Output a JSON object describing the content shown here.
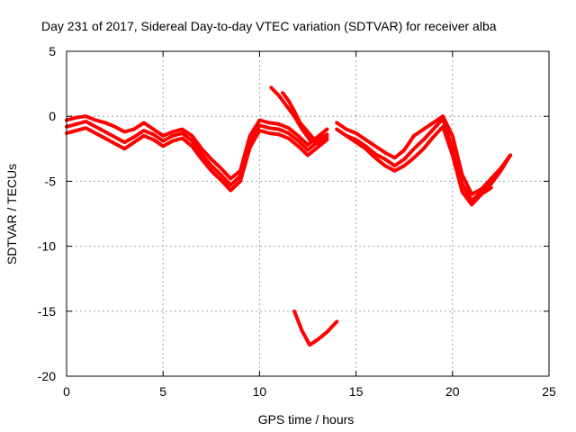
{
  "chart_data": {
    "type": "line",
    "title": "Day 231 of 2017, Sidereal Day-to-day VTEC variation (SDTVAR) for receiver alba",
    "xlabel": "GPS time / hours",
    "ylabel": "SDTVAR / TECUs",
    "xlim": [
      0,
      25
    ],
    "ylim": [
      -20,
      5
    ],
    "xticks": [
      0,
      5,
      10,
      15,
      20,
      25
    ],
    "yticks": [
      5,
      0,
      -5,
      -10,
      -15,
      -20
    ],
    "grid": true,
    "color": "#ff0000",
    "series": [
      {
        "name": "s1",
        "x": [
          0,
          0.5,
          1,
          1.5,
          2,
          2.5,
          3,
          3.5,
          4,
          4.5,
          5,
          5.5,
          6,
          6.5,
          7,
          7.5,
          8,
          8.5,
          9,
          9.5,
          10,
          10.5,
          11,
          11.5,
          12,
          12.5,
          13,
          13.5
        ],
        "y": [
          -0.3,
          -0.1,
          0,
          -0.3,
          -0.5,
          -0.8,
          -1.2,
          -1,
          -0.5,
          -1,
          -1.5,
          -1.2,
          -1,
          -1.5,
          -2.5,
          -3.3,
          -4,
          -4.8,
          -4.2,
          -1.5,
          -0.3,
          -0.5,
          -0.6,
          -0.9,
          -1.5,
          -2.2,
          -1.6,
          -1
        ]
      },
      {
        "name": "s2",
        "x": [
          0,
          0.5,
          1,
          1.5,
          2,
          2.5,
          3,
          3.5,
          4,
          4.5,
          5,
          5.5,
          6,
          6.5,
          7,
          7.5,
          8,
          8.5,
          9,
          9.5,
          10,
          10.5,
          11,
          11.5,
          12,
          12.5,
          13,
          13.5
        ],
        "y": [
          -0.8,
          -0.6,
          -0.4,
          -0.8,
          -1.2,
          -1.6,
          -2,
          -1.6,
          -1.1,
          -1.4,
          -1.9,
          -1.5,
          -1.3,
          -1.9,
          -2.9,
          -3.8,
          -4.5,
          -5.3,
          -4.6,
          -2,
          -0.7,
          -0.9,
          -1,
          -1.3,
          -1.9,
          -2.6,
          -2,
          -1.4
        ]
      },
      {
        "name": "s3",
        "x": [
          0,
          0.5,
          1,
          1.5,
          2,
          2.5,
          3,
          3.5,
          4,
          4.5,
          5,
          5.5,
          6,
          6.5,
          7,
          7.5,
          8,
          8.5,
          9,
          9.5,
          10,
          10.5,
          11,
          11.5,
          12,
          12.5,
          13,
          13.5
        ],
        "y": [
          -1.3,
          -1.1,
          -0.9,
          -1.3,
          -1.7,
          -2.1,
          -2.5,
          -2,
          -1.5,
          -1.8,
          -2.3,
          -1.9,
          -1.7,
          -2.3,
          -3.3,
          -4.2,
          -4.9,
          -5.7,
          -5,
          -2.4,
          -1.1,
          -1.3,
          -1.4,
          -1.7,
          -2.3,
          -3,
          -2.4,
          -1.8
        ]
      },
      {
        "name": "s4",
        "x": [
          10.6,
          11,
          11.4,
          11.8,
          12.2,
          12.6,
          13,
          13.5
        ],
        "y": [
          2.2,
          1.6,
          0.8,
          0,
          -1,
          -1.8,
          -2.1,
          -1.6
        ]
      },
      {
        "name": "s5",
        "x": [
          11.2,
          11.5,
          11.8,
          12.1,
          12.5,
          12.9,
          13.4
        ],
        "y": [
          1.8,
          1.2,
          0.4,
          -0.5,
          -1.2,
          -1.9,
          -1.5
        ]
      },
      {
        "name": "s6",
        "x": [
          14,
          14.5,
          15,
          15.5,
          16,
          16.5,
          17,
          17.5,
          18,
          18.5,
          19,
          19.5,
          20,
          20.5,
          21,
          21.5,
          22,
          22.5,
          23
        ],
        "y": [
          -0.5,
          -1,
          -1.3,
          -1.8,
          -2.3,
          -2.8,
          -3.2,
          -2.6,
          -1.5,
          -1,
          -0.5,
          0,
          -1.5,
          -4.5,
          -6,
          -5.6,
          -4.8,
          -4,
          -3
        ]
      },
      {
        "name": "s7",
        "x": [
          14,
          14.5,
          15,
          15.5,
          16,
          16.5,
          17,
          17.5,
          18,
          18.5,
          19,
          19.5,
          20,
          20.5,
          21,
          21.5,
          22,
          22.5,
          23
        ],
        "y": [
          -1,
          -1.5,
          -1.8,
          -2.3,
          -2.9,
          -3.3,
          -3.8,
          -3.3,
          -2.5,
          -1.8,
          -1,
          -0.2,
          -2.5,
          -5.2,
          -6.5,
          -5.8,
          -5.2,
          -4.2,
          -3
        ]
      },
      {
        "name": "s8",
        "x": [
          14.5,
          15,
          15.5,
          16,
          16.5,
          17,
          17.5,
          18,
          18.5,
          19,
          19.5,
          20,
          20.5,
          21,
          21.5,
          22
        ],
        "y": [
          -1.5,
          -2,
          -2.5,
          -3.2,
          -3.8,
          -4.2,
          -3.8,
          -3.2,
          -2.5,
          -1.6,
          -0.8,
          -3,
          -5.8,
          -6.8,
          -6,
          -5.5
        ]
      },
      {
        "name": "s9",
        "x": [
          11.8,
          12.2,
          12.6,
          13,
          13.5,
          14
        ],
        "y": [
          -15,
          -16.5,
          -17.6,
          -17.2,
          -16.6,
          -15.8
        ]
      }
    ]
  }
}
